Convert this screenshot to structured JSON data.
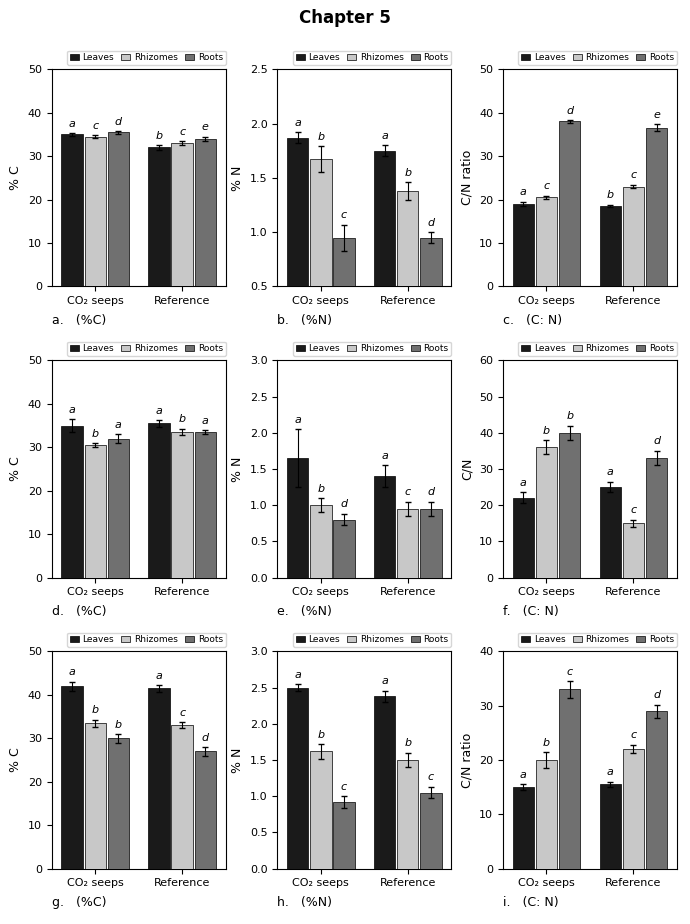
{
  "title": "Chapter 5",
  "chart_data": [
    {
      "type": "bar",
      "title": "a.   (%C)",
      "y_label": "% C",
      "categories": [
        "CO₂ seeps",
        "Reference"
      ],
      "ylim": [
        0,
        50
      ],
      "yticks": [
        0,
        10,
        20,
        30,
        40,
        50
      ],
      "legend": "upper right",
      "series": [
        {
          "name": "Leaves",
          "color": "#1a1a1a",
          "values": [
            35.0,
            32.0
          ],
          "errors": [
            0.3,
            0.5
          ],
          "annotations": [
            "a",
            "b"
          ]
        },
        {
          "name": "Rhizomes",
          "color": "#c8c8c8",
          "values": [
            34.5,
            33.0
          ],
          "errors": [
            0.3,
            0.5
          ],
          "annotations": [
            "c",
            "c"
          ]
        },
        {
          "name": "Roots",
          "color": "#707070",
          "values": [
            35.5,
            34.0
          ],
          "errors": [
            0.3,
            0.5
          ],
          "annotations": [
            "d",
            "e"
          ]
        }
      ]
    },
    {
      "type": "bar",
      "title": "b.   (%N)",
      "y_label": "% N",
      "categories": [
        "CO₂ seeps",
        "Reference"
      ],
      "ylim": [
        0.5,
        2.5
      ],
      "yticks": [
        0.5,
        1.0,
        1.5,
        2.0,
        2.5
      ],
      "legend": "upper right",
      "series": [
        {
          "name": "Leaves",
          "color": "#1a1a1a",
          "values": [
            1.87,
            1.75
          ],
          "errors": [
            0.05,
            0.05
          ],
          "annotations": [
            "a",
            "a"
          ]
        },
        {
          "name": "Rhizomes",
          "color": "#c8c8c8",
          "values": [
            1.67,
            1.38
          ],
          "errors": [
            0.12,
            0.08
          ],
          "annotations": [
            "b",
            "b"
          ]
        },
        {
          "name": "Roots",
          "color": "#707070",
          "values": [
            0.95,
            0.95
          ],
          "errors": [
            0.12,
            0.05
          ],
          "annotations": [
            "c",
            "d"
          ]
        }
      ]
    },
    {
      "type": "bar",
      "title": "c.   (C: N)",
      "y_label": "C/N ratio",
      "categories": [
        "CO₂ seeps",
        "Reference"
      ],
      "ylim": [
        0,
        50
      ],
      "yticks": [
        0,
        10,
        20,
        30,
        40,
        50
      ],
      "legend": "upper right",
      "series": [
        {
          "name": "Leaves",
          "color": "#1a1a1a",
          "values": [
            19.0,
            18.5
          ],
          "errors": [
            0.5,
            0.3
          ],
          "annotations": [
            "a",
            "b"
          ]
        },
        {
          "name": "Rhizomes",
          "color": "#c8c8c8",
          "values": [
            20.5,
            23.0
          ],
          "errors": [
            0.4,
            0.4
          ],
          "annotations": [
            "c",
            "c"
          ]
        },
        {
          "name": "Roots",
          "color": "#707070",
          "values": [
            38.0,
            36.5
          ],
          "errors": [
            0.3,
            0.8
          ],
          "annotations": [
            "d",
            "e"
          ]
        }
      ]
    },
    {
      "type": "bar",
      "title": "d.   (%C)",
      "y_label": "% C",
      "categories": [
        "CO₂ seeps",
        "Reference"
      ],
      "ylim": [
        0,
        50
      ],
      "yticks": [
        0,
        10,
        20,
        30,
        40,
        50
      ],
      "legend": "upper right",
      "series": [
        {
          "name": "Leaves",
          "color": "#1a1a1a",
          "values": [
            35.0,
            35.5
          ],
          "errors": [
            1.5,
            0.8
          ],
          "annotations": [
            "a",
            "a"
          ]
        },
        {
          "name": "Rhizomes",
          "color": "#c8c8c8",
          "values": [
            30.5,
            33.5
          ],
          "errors": [
            0.5,
            0.8
          ],
          "annotations": [
            "b",
            "b"
          ]
        },
        {
          "name": "Roots",
          "color": "#707070",
          "values": [
            32.0,
            33.5
          ],
          "errors": [
            1.0,
            0.5
          ],
          "annotations": [
            "a",
            "a"
          ]
        }
      ]
    },
    {
      "type": "bar",
      "title": "e.   (%N)",
      "y_label": "% N",
      "categories": [
        "CO₂ seeps",
        "Reference"
      ],
      "ylim": [
        0.0,
        3.0
      ],
      "yticks": [
        0.0,
        0.5,
        1.0,
        1.5,
        2.0,
        2.5,
        3.0
      ],
      "legend": "upper right",
      "series": [
        {
          "name": "Leaves",
          "color": "#1a1a1a",
          "values": [
            1.65,
            1.4
          ],
          "errors": [
            0.4,
            0.15
          ],
          "annotations": [
            "a",
            "a"
          ]
        },
        {
          "name": "Rhizomes",
          "color": "#c8c8c8",
          "values": [
            1.0,
            0.95
          ],
          "errors": [
            0.1,
            0.1
          ],
          "annotations": [
            "b",
            "c"
          ]
        },
        {
          "name": "Roots",
          "color": "#707070",
          "values": [
            0.8,
            0.95
          ],
          "errors": [
            0.08,
            0.1
          ],
          "annotations": [
            "d",
            "d"
          ]
        }
      ]
    },
    {
      "type": "bar",
      "title": "f.   (C: N)",
      "y_label": "C/N",
      "categories": [
        "CO₂ seeps",
        "Reference"
      ],
      "ylim": [
        0,
        60
      ],
      "yticks": [
        0,
        10,
        20,
        30,
        40,
        50,
        60
      ],
      "legend": "upper right",
      "series": [
        {
          "name": "Leaves",
          "color": "#1a1a1a",
          "values": [
            22.0,
            25.0
          ],
          "errors": [
            1.5,
            1.5
          ],
          "annotations": [
            "a",
            "a"
          ]
        },
        {
          "name": "Rhizomes",
          "color": "#c8c8c8",
          "values": [
            36.0,
            15.0
          ],
          "errors": [
            2.0,
            1.0
          ],
          "annotations": [
            "b",
            "c"
          ]
        },
        {
          "name": "Roots",
          "color": "#707070",
          "values": [
            40.0,
            33.0
          ],
          "errors": [
            2.0,
            2.0
          ],
          "annotations": [
            "b",
            "d"
          ]
        }
      ]
    },
    {
      "type": "bar",
      "title": "g.   (%C)",
      "y_label": "% C",
      "categories": [
        "CO₂ seeps",
        "Reference"
      ],
      "ylim": [
        0,
        50
      ],
      "yticks": [
        0,
        10,
        20,
        30,
        40,
        50
      ],
      "legend": "upper right",
      "series": [
        {
          "name": "Leaves",
          "color": "#1a1a1a",
          "values": [
            42.0,
            41.5
          ],
          "errors": [
            1.0,
            0.8
          ],
          "annotations": [
            "a",
            "a"
          ]
        },
        {
          "name": "Rhizomes",
          "color": "#c8c8c8",
          "values": [
            33.5,
            33.0
          ],
          "errors": [
            0.8,
            0.7
          ],
          "annotations": [
            "b",
            "c"
          ]
        },
        {
          "name": "Roots",
          "color": "#707070",
          "values": [
            30.0,
            27.0
          ],
          "errors": [
            1.0,
            1.0
          ],
          "annotations": [
            "b",
            "d"
          ]
        }
      ]
    },
    {
      "type": "bar",
      "title": "h.   (%N)",
      "y_label": "% N",
      "categories": [
        "CO₂ seeps",
        "Reference"
      ],
      "ylim": [
        0.0,
        3.0
      ],
      "yticks": [
        0.0,
        0.5,
        1.0,
        1.5,
        2.0,
        2.5,
        3.0
      ],
      "legend": "upper right",
      "series": [
        {
          "name": "Leaves",
          "color": "#1a1a1a",
          "values": [
            2.5,
            2.38
          ],
          "errors": [
            0.05,
            0.08
          ],
          "annotations": [
            "a",
            "a"
          ]
        },
        {
          "name": "Rhizomes",
          "color": "#c8c8c8",
          "values": [
            1.62,
            1.5
          ],
          "errors": [
            0.1,
            0.1
          ],
          "annotations": [
            "b",
            "b"
          ]
        },
        {
          "name": "Roots",
          "color": "#707070",
          "values": [
            0.92,
            1.05
          ],
          "errors": [
            0.08,
            0.08
          ],
          "annotations": [
            "c",
            "c"
          ]
        }
      ]
    },
    {
      "type": "bar",
      "title": "i.   (C: N)",
      "y_label": "C/N ratio",
      "categories": [
        "CO₂ seeps",
        "Reference"
      ],
      "ylim": [
        0,
        40
      ],
      "yticks": [
        0,
        10,
        20,
        30,
        40
      ],
      "legend": "upper right",
      "series": [
        {
          "name": "Leaves",
          "color": "#1a1a1a",
          "values": [
            15.0,
            15.5
          ],
          "errors": [
            0.5,
            0.5
          ],
          "annotations": [
            "a",
            "a"
          ]
        },
        {
          "name": "Rhizomes",
          "color": "#c8c8c8",
          "values": [
            20.0,
            22.0
          ],
          "errors": [
            1.5,
            0.8
          ],
          "annotations": [
            "b",
            "c"
          ]
        },
        {
          "name": "Roots",
          "color": "#707070",
          "values": [
            33.0,
            29.0
          ],
          "errors": [
            1.5,
            1.2
          ],
          "annotations": [
            "c",
            "d"
          ]
        }
      ]
    }
  ]
}
